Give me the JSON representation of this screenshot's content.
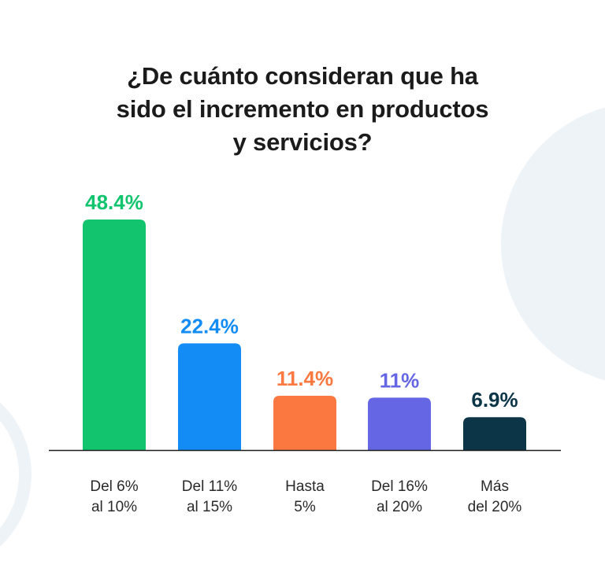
{
  "chart_data": {
    "type": "bar",
    "title": "¿De cuánto consideran que ha sido el incremento en productos y servicios?",
    "title_lines": [
      "¿De cuánto consideran que ha",
      "sido el incremento en productos",
      "y servicios?"
    ],
    "categories": [
      "Del 6% al 10%",
      "Del 11% al 15%",
      "Hasta 5%",
      "Del 16% al 20%",
      "Más del 20%"
    ],
    "category_lines": [
      [
        "Del 6%",
        "al 10%"
      ],
      [
        "Del 11%",
        "al 15%"
      ],
      [
        "Hasta",
        "5%"
      ],
      [
        "Del 16%",
        "al 20%"
      ],
      [
        "Más",
        "del 20%"
      ]
    ],
    "values": [
      48.4,
      22.4,
      11.4,
      11,
      6.9
    ],
    "value_labels": [
      "48.4%",
      "22.4%",
      "11.4%",
      "11%",
      "6.9%"
    ],
    "colors": [
      "#12c46e",
      "#138cf5",
      "#fb7841",
      "#6466e4",
      "#0c3648"
    ],
    "label_colors": [
      "#12c46e",
      "#138cf5",
      "#fb7841",
      "#6466e4",
      "#0c3648"
    ],
    "xlabel": "",
    "ylabel": "",
    "ylim": [
      0,
      48.4
    ],
    "grid": false,
    "legend": "none"
  },
  "theme": {
    "axis_color": "#1d1d1d",
    "title_color": "#1b1b1b",
    "background_accent": "#eef3f8"
  }
}
